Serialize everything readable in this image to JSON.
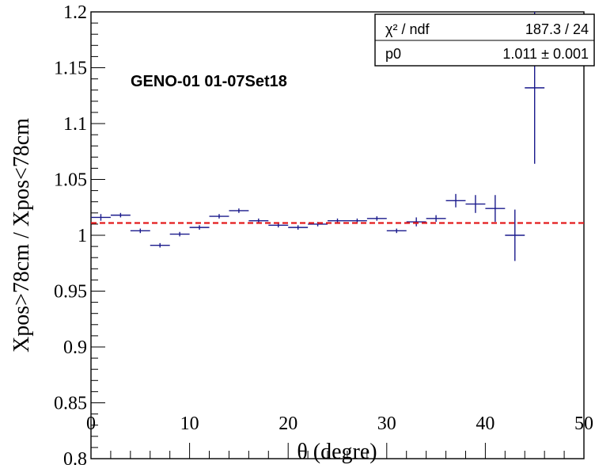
{
  "chart_data": {
    "type": "scatter",
    "title": "GENO-01 01-07Set18",
    "xlabel": "θ (degre)",
    "ylabel": "Xpos>78cm / Xpos<78cm",
    "xlim": [
      0,
      50
    ],
    "ylim": [
      0.8,
      1.2
    ],
    "x_ticks": [
      "0",
      "10",
      "20",
      "30",
      "40",
      "50"
    ],
    "y_ticks": [
      "0.8",
      "0.85",
      "0.9",
      "0.95",
      "1",
      "1.05",
      "1.1",
      "1.15",
      "1.2"
    ],
    "grid": false,
    "series": [
      {
        "type": "errorbar",
        "color": "#1a1a8c",
        "points": [
          {
            "x": 1,
            "y": 1.016,
            "xerr": 1,
            "yerr": 0.003
          },
          {
            "x": 3,
            "y": 1.018,
            "xerr": 1,
            "yerr": 0.002
          },
          {
            "x": 5,
            "y": 1.004,
            "xerr": 1,
            "yerr": 0.002
          },
          {
            "x": 7,
            "y": 0.991,
            "xerr": 1,
            "yerr": 0.002
          },
          {
            "x": 9,
            "y": 1.001,
            "xerr": 1,
            "yerr": 0.002
          },
          {
            "x": 11,
            "y": 1.007,
            "xerr": 1,
            "yerr": 0.002
          },
          {
            "x": 13,
            "y": 1.017,
            "xerr": 1,
            "yerr": 0.002
          },
          {
            "x": 15,
            "y": 1.022,
            "xerr": 1,
            "yerr": 0.002
          },
          {
            "x": 17,
            "y": 1.013,
            "xerr": 1,
            "yerr": 0.002
          },
          {
            "x": 19,
            "y": 1.009,
            "xerr": 1,
            "yerr": 0.002
          },
          {
            "x": 21,
            "y": 1.007,
            "xerr": 1,
            "yerr": 0.002
          },
          {
            "x": 23,
            "y": 1.01,
            "xerr": 1,
            "yerr": 0.002
          },
          {
            "x": 25,
            "y": 1.013,
            "xerr": 1,
            "yerr": 0.002
          },
          {
            "x": 27,
            "y": 1.013,
            "xerr": 1,
            "yerr": 0.002
          },
          {
            "x": 29,
            "y": 1.015,
            "xerr": 1,
            "yerr": 0.002
          },
          {
            "x": 31,
            "y": 1.004,
            "xerr": 1,
            "yerr": 0.002
          },
          {
            "x": 33,
            "y": 1.012,
            "xerr": 1,
            "yerr": 0.004
          },
          {
            "x": 35,
            "y": 1.015,
            "xerr": 1,
            "yerr": 0.003
          },
          {
            "x": 37,
            "y": 1.031,
            "xerr": 1,
            "yerr": 0.006
          },
          {
            "x": 39,
            "y": 1.028,
            "xerr": 1,
            "yerr": 0.008
          },
          {
            "x": 41,
            "y": 1.024,
            "xerr": 1,
            "yerr": 0.012
          },
          {
            "x": 43,
            "y": 1.0,
            "xerr": 1,
            "yerr": 0.023
          },
          {
            "x": 45,
            "y": 1.132,
            "xerr": 1,
            "yerr": 0.068
          }
        ]
      },
      {
        "type": "line",
        "style": "dashed",
        "color": "#e31a1c",
        "y": 1.011,
        "xrange": [
          0,
          50
        ]
      }
    ],
    "stats_box": {
      "rows": [
        {
          "label": "χ² / ndf",
          "value": "187.3 / 24"
        },
        {
          "label": "p0",
          "value": "1.011 ± 0.001"
        }
      ]
    }
  }
}
